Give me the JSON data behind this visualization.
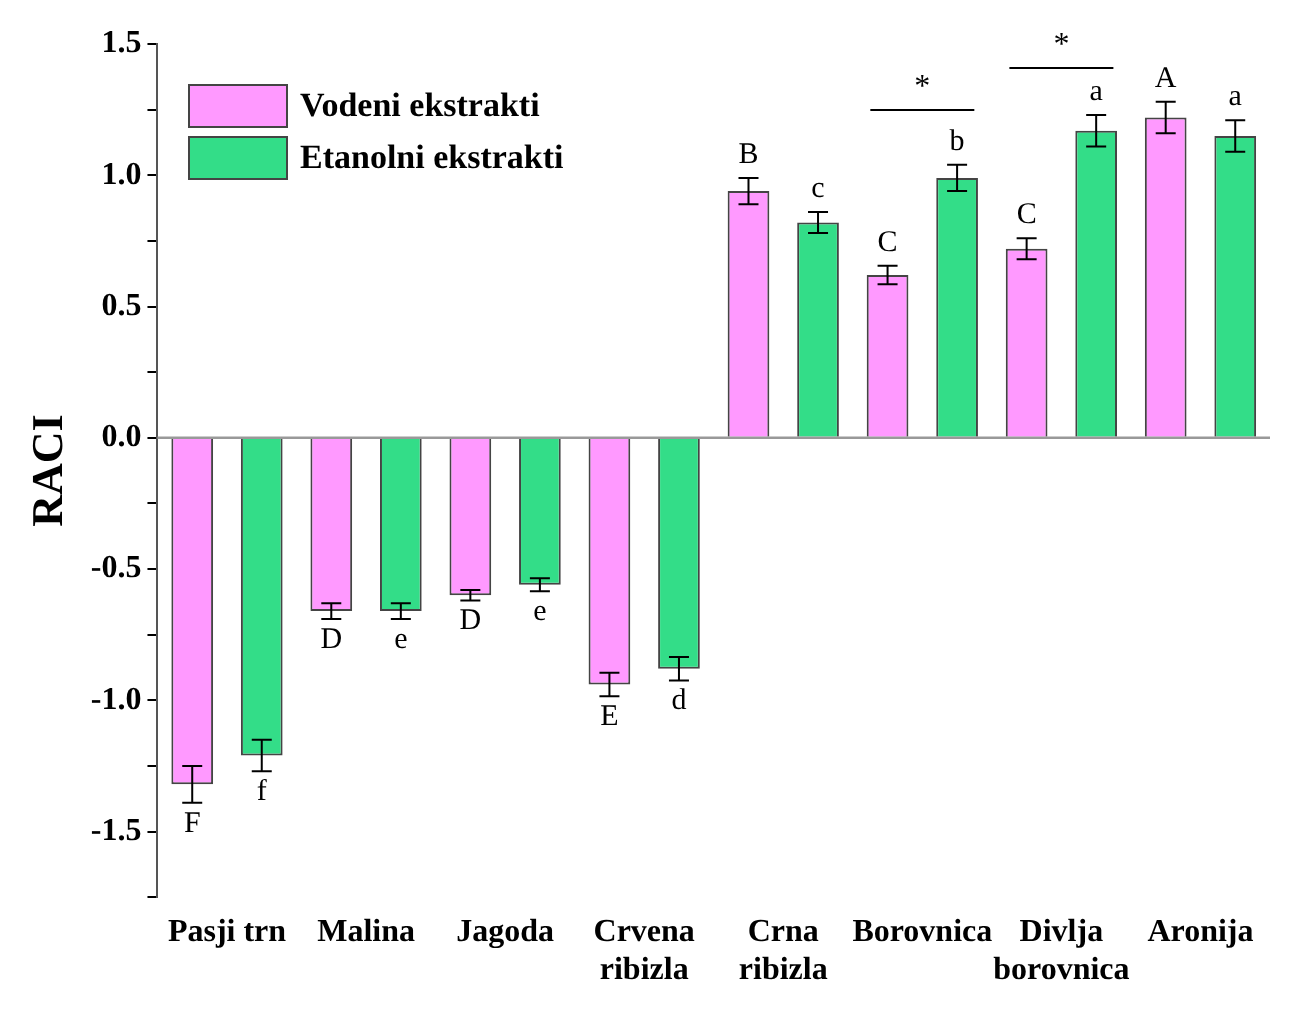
{
  "chart_data": {
    "type": "bar",
    "ylabel": "RACI",
    "categories": [
      "Pasji trn",
      "Malina",
      "Jagoda",
      "Crvena ribizla",
      "Crna ribizla",
      "Borovnica",
      "Divlja borovnica",
      "Aronija"
    ],
    "series": [
      {
        "name": "Vodeni ekstrakti",
        "color": "#ff99ff",
        "values": [
          -1.32,
          -0.66,
          -0.6,
          -0.94,
          0.94,
          0.62,
          0.72,
          1.22
        ],
        "errors": [
          0.07,
          0.03,
          0.02,
          0.045,
          0.05,
          0.035,
          0.04,
          0.06
        ],
        "value_labels": [
          "F",
          "D",
          "D",
          "E",
          "B",
          "C",
          "C",
          "A"
        ]
      },
      {
        "name": "Etanolni ekstrakti",
        "color": "#33dd88",
        "values": [
          -1.21,
          -0.66,
          -0.56,
          -0.88,
          0.82,
          0.99,
          1.17,
          1.15
        ],
        "errors": [
          0.06,
          0.03,
          0.025,
          0.045,
          0.04,
          0.05,
          0.06,
          0.06
        ],
        "value_labels": [
          "f",
          "e",
          "e",
          "d",
          "c",
          "b",
          "a",
          "a"
        ]
      }
    ],
    "ylim": [
      -1.75,
      1.5
    ],
    "yticks": [
      {
        "value": -1.75,
        "label": null
      },
      -1.5,
      {
        "value": -1.25,
        "label": null
      },
      {
        "value": -1.0,
        "label": "-1.0"
      },
      {
        "value": -0.75,
        "label": null
      },
      -0.5,
      {
        "value": -0.25,
        "label": null
      },
      {
        "value": 0.0,
        "label": "0.0"
      },
      {
        "value": 0.25,
        "label": null
      },
      0.5,
      {
        "value": 0.75,
        "label": null
      },
      {
        "value": 1.0,
        "label": "1.0"
      },
      {
        "value": 1.25,
        "label": null
      },
      1.5
    ],
    "ref_lines": [
      {
        "axis": "y",
        "value": 0,
        "color": "#999999"
      }
    ],
    "annotations": [
      "*",
      "*"
    ],
    "legend": "top left",
    "grid": false
  }
}
